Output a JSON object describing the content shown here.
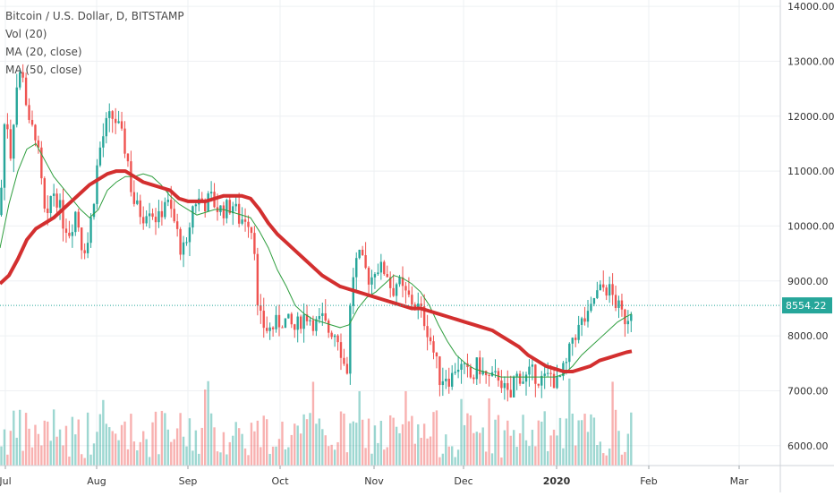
{
  "chart_data": {
    "type": "candlestick",
    "title": "Bitcoin / U.S. Dollar, D, BITSTAMP",
    "indicators": [
      "Vol (20)",
      "MA (20, close)",
      "MA (50, close)"
    ],
    "x_tick_labels": [
      "Jul",
      "Aug",
      "Sep",
      "Oct",
      "Nov",
      "Dec",
      "2020",
      "Feb",
      "Mar"
    ],
    "y_tick_labels": [
      "14000.00",
      "13000.00",
      "12000.00",
      "11000.00",
      "10000.00",
      "9000.00",
      "8000.00",
      "7000.00",
      "6000.00"
    ],
    "y_ticks": [
      14000,
      13000,
      12000,
      11000,
      10000,
      9000,
      8000,
      7000,
      6000
    ],
    "ylim": [
      5850,
      14050
    ],
    "last_price": 8554.22,
    "last_price_label": "8554.22",
    "grid": true,
    "colors": {
      "up": "#26a69a",
      "down": "#ef5350",
      "ma20": "#2e9e3e",
      "ma50": "#d32f2f",
      "price_line": "#26a69a",
      "grid": "#eef0f3",
      "axis_text": "#333333"
    },
    "price_path": [
      [
        0,
        10200
      ],
      [
        6,
        12200
      ],
      [
        12,
        11300
      ],
      [
        18,
        12500
      ],
      [
        25,
        12900
      ],
      [
        32,
        11800
      ],
      [
        40,
        11700
      ],
      [
        46,
        10800
      ],
      [
        52,
        9900
      ],
      [
        58,
        10700
      ],
      [
        64,
        10500
      ],
      [
        70,
        10100
      ],
      [
        78,
        9900
      ],
      [
        85,
        10300
      ],
      [
        92,
        9600
      ],
      [
        98,
        9700
      ],
      [
        104,
        10400
      ],
      [
        110,
        11300
      ],
      [
        118,
        11800
      ],
      [
        124,
        12000
      ],
      [
        130,
        11900
      ],
      [
        136,
        11600
      ],
      [
        142,
        11300
      ],
      [
        148,
        10500
      ],
      [
        154,
        10300
      ],
      [
        160,
        10200
      ],
      [
        166,
        10400
      ],
      [
        172,
        10200
      ],
      [
        178,
        10100
      ],
      [
        184,
        10500
      ],
      [
        190,
        10300
      ],
      [
        196,
        10000
      ],
      [
        202,
        9600
      ],
      [
        208,
        9500
      ],
      [
        214,
        10300
      ],
      [
        220,
        10500
      ],
      [
        228,
        10400
      ],
      [
        236,
        10500
      ],
      [
        244,
        10300
      ],
      [
        252,
        10300
      ],
      [
        260,
        10400
      ],
      [
        268,
        10100
      ],
      [
        276,
        10200
      ],
      [
        284,
        9800
      ],
      [
        288,
        8400
      ],
      [
        294,
        8200
      ],
      [
        300,
        8100
      ],
      [
        308,
        8200
      ],
      [
        316,
        8300
      ],
      [
        324,
        8200
      ],
      [
        330,
        8100
      ],
      [
        336,
        8300
      ],
      [
        342,
        8400
      ],
      [
        348,
        8300
      ],
      [
        354,
        8200
      ],
      [
        360,
        8300
      ],
      [
        366,
        8100
      ],
      [
        372,
        8100
      ],
      [
        378,
        8000
      ],
      [
        384,
        7500
      ],
      [
        388,
        7400
      ],
      [
        392,
        8700
      ],
      [
        396,
        9300
      ],
      [
        402,
        9400
      ],
      [
        408,
        9200
      ],
      [
        414,
        9000
      ],
      [
        420,
        9300
      ],
      [
        426,
        9200
      ],
      [
        432,
        9200
      ],
      [
        438,
        8800
      ],
      [
        444,
        9000
      ],
      [
        450,
        8800
      ],
      [
        456,
        8700
      ],
      [
        462,
        8600
      ],
      [
        468,
        8500
      ],
      [
        474,
        8300
      ],
      [
        480,
        8000
      ],
      [
        486,
        7600
      ],
      [
        492,
        7200
      ],
      [
        498,
        7300
      ],
      [
        504,
        7200
      ],
      [
        510,
        7500
      ],
      [
        516,
        7400
      ],
      [
        522,
        7300
      ],
      [
        528,
        7200
      ],
      [
        534,
        7500
      ],
      [
        540,
        7300
      ],
      [
        546,
        7200
      ],
      [
        552,
        7200
      ],
      [
        558,
        7300
      ],
      [
        564,
        7000
      ],
      [
        570,
        6800
      ],
      [
        574,
        7200
      ],
      [
        580,
        7300
      ],
      [
        586,
        7200
      ],
      [
        592,
        7300
      ],
      [
        598,
        7300
      ],
      [
        604,
        7200
      ],
      [
        610,
        7200
      ],
      [
        616,
        7300
      ],
      [
        622,
        7100
      ],
      [
        628,
        7300
      ],
      [
        634,
        7500
      ],
      [
        640,
        8000
      ],
      [
        646,
        8100
      ],
      [
        652,
        8300
      ],
      [
        658,
        8300
      ],
      [
        664,
        8700
      ],
      [
        670,
        8800
      ],
      [
        676,
        8900
      ],
      [
        682,
        8800
      ],
      [
        688,
        8600
      ],
      [
        694,
        8400
      ],
      [
        700,
        8300
      ],
      [
        706,
        8554
      ]
    ],
    "ma20_path": [
      [
        0,
        9600
      ],
      [
        10,
        10400
      ],
      [
        20,
        11000
      ],
      [
        30,
        11400
      ],
      [
        40,
        11500
      ],
      [
        50,
        11200
      ],
      [
        60,
        10900
      ],
      [
        70,
        10700
      ],
      [
        80,
        10500
      ],
      [
        90,
        10300
      ],
      [
        100,
        10150
      ],
      [
        110,
        10300
      ],
      [
        120,
        10650
      ],
      [
        130,
        10800
      ],
      [
        140,
        10900
      ],
      [
        150,
        10900
      ],
      [
        160,
        10950
      ],
      [
        170,
        10900
      ],
      [
        180,
        10750
      ],
      [
        190,
        10550
      ],
      [
        200,
        10400
      ],
      [
        210,
        10300
      ],
      [
        220,
        10200
      ],
      [
        230,
        10250
      ],
      [
        240,
        10300
      ],
      [
        250,
        10300
      ],
      [
        260,
        10250
      ],
      [
        270,
        10200
      ],
      [
        280,
        10150
      ],
      [
        290,
        9900
      ],
      [
        300,
        9600
      ],
      [
        310,
        9200
      ],
      [
        320,
        8900
      ],
      [
        330,
        8550
      ],
      [
        340,
        8400
      ],
      [
        350,
        8300
      ],
      [
        360,
        8250
      ],
      [
        370,
        8200
      ],
      [
        380,
        8150
      ],
      [
        390,
        8200
      ],
      [
        400,
        8500
      ],
      [
        410,
        8700
      ],
      [
        420,
        8800
      ],
      [
        430,
        8950
      ],
      [
        440,
        9100
      ],
      [
        450,
        9050
      ],
      [
        460,
        8950
      ],
      [
        470,
        8800
      ],
      [
        480,
        8550
      ],
      [
        490,
        8200
      ],
      [
        500,
        7900
      ],
      [
        510,
        7650
      ],
      [
        520,
        7500
      ],
      [
        530,
        7400
      ],
      [
        540,
        7350
      ],
      [
        550,
        7300
      ],
      [
        560,
        7250
      ],
      [
        570,
        7250
      ],
      [
        580,
        7250
      ],
      [
        590,
        7250
      ],
      [
        600,
        7250
      ],
      [
        610,
        7250
      ],
      [
        620,
        7250
      ],
      [
        630,
        7300
      ],
      [
        640,
        7450
      ],
      [
        650,
        7650
      ],
      [
        660,
        7800
      ],
      [
        670,
        7950
      ],
      [
        680,
        8100
      ],
      [
        690,
        8250
      ],
      [
        700,
        8350
      ],
      [
        706,
        8400
      ]
    ],
    "ma50_path": [
      [
        0,
        8950
      ],
      [
        10,
        9100
      ],
      [
        20,
        9400
      ],
      [
        30,
        9750
      ],
      [
        40,
        9950
      ],
      [
        50,
        10050
      ],
      [
        60,
        10150
      ],
      [
        70,
        10300
      ],
      [
        80,
        10450
      ],
      [
        90,
        10600
      ],
      [
        100,
        10750
      ],
      [
        110,
        10850
      ],
      [
        120,
        10950
      ],
      [
        130,
        11000
      ],
      [
        140,
        11000
      ],
      [
        150,
        10900
      ],
      [
        160,
        10800
      ],
      [
        170,
        10750
      ],
      [
        180,
        10700
      ],
      [
        190,
        10650
      ],
      [
        200,
        10500
      ],
      [
        210,
        10450
      ],
      [
        220,
        10450
      ],
      [
        230,
        10450
      ],
      [
        240,
        10500
      ],
      [
        250,
        10550
      ],
      [
        260,
        10550
      ],
      [
        270,
        10550
      ],
      [
        280,
        10500
      ],
      [
        290,
        10300
      ],
      [
        300,
        10050
      ],
      [
        310,
        9850
      ],
      [
        320,
        9700
      ],
      [
        330,
        9550
      ],
      [
        340,
        9400
      ],
      [
        350,
        9250
      ],
      [
        360,
        9100
      ],
      [
        370,
        9000
      ],
      [
        380,
        8900
      ],
      [
        390,
        8850
      ],
      [
        400,
        8800
      ],
      [
        410,
        8750
      ],
      [
        420,
        8700
      ],
      [
        430,
        8650
      ],
      [
        440,
        8600
      ],
      [
        450,
        8550
      ],
      [
        460,
        8500
      ],
      [
        470,
        8500
      ],
      [
        480,
        8450
      ],
      [
        490,
        8400
      ],
      [
        500,
        8350
      ],
      [
        510,
        8300
      ],
      [
        520,
        8250
      ],
      [
        530,
        8200
      ],
      [
        540,
        8150
      ],
      [
        550,
        8100
      ],
      [
        560,
        8000
      ],
      [
        570,
        7900
      ],
      [
        580,
        7800
      ],
      [
        590,
        7650
      ],
      [
        600,
        7550
      ],
      [
        610,
        7450
      ],
      [
        620,
        7400
      ],
      [
        630,
        7350
      ],
      [
        640,
        7350
      ],
      [
        650,
        7400
      ],
      [
        660,
        7450
      ],
      [
        670,
        7550
      ],
      [
        680,
        7600
      ],
      [
        690,
        7650
      ],
      [
        700,
        7700
      ],
      [
        706,
        7720
      ]
    ]
  }
}
